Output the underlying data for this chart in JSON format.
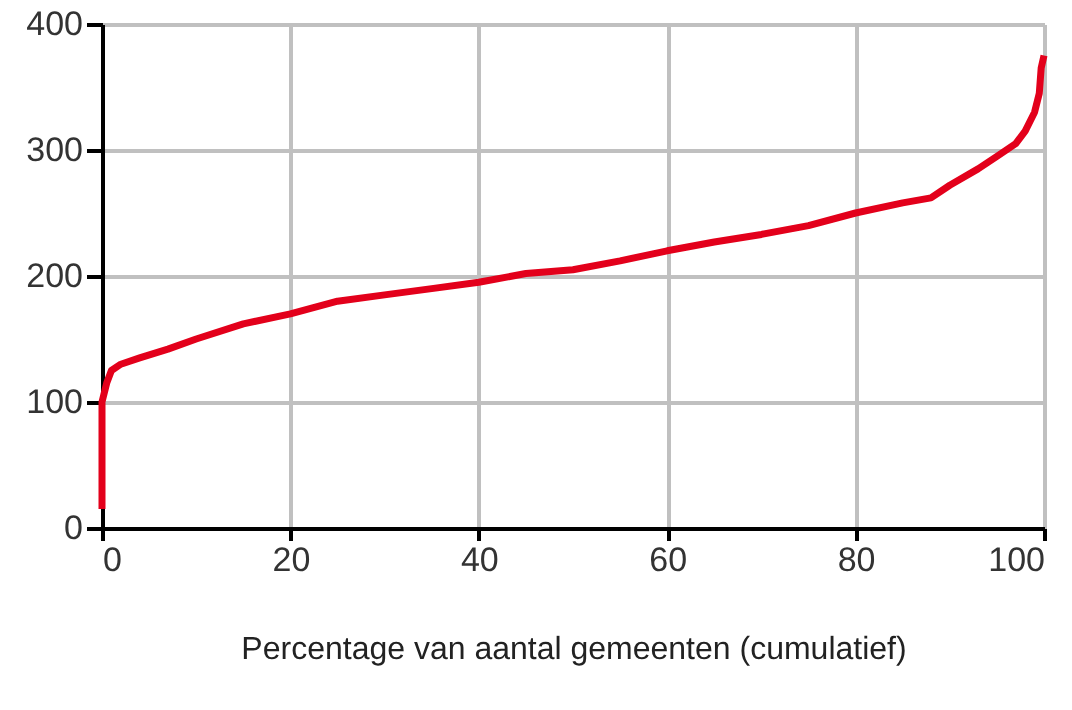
{
  "chart_data": {
    "type": "line",
    "xlabel": "Percentage van aantal gemeenten (cumulatief)",
    "x": [
      0,
      0,
      0.5,
      1,
      2,
      4,
      7,
      10,
      15,
      20,
      25,
      30,
      35,
      40,
      45,
      50,
      55,
      60,
      65,
      70,
      75,
      80,
      85,
      88,
      90,
      93,
      95,
      97,
      98,
      99,
      99.5,
      99.7,
      100
    ],
    "series": [
      {
        "color": "#e3001b",
        "values": [
          15,
          100,
          115,
          125,
          130,
          135,
          142,
          150,
          162,
          170,
          180,
          185,
          190,
          195,
          202,
          205,
          212,
          220,
          227,
          233,
          240,
          250,
          258,
          262,
          272,
          285,
          295,
          305,
          315,
          330,
          345,
          365,
          375
        ]
      }
    ],
    "xlim": [
      0,
      100
    ],
    "xticks": [
      0,
      20,
      40,
      60,
      80,
      100
    ],
    "ylim": [
      0,
      400
    ],
    "yticks": [
      0,
      100,
      200,
      300,
      400
    ],
    "grid": true
  }
}
